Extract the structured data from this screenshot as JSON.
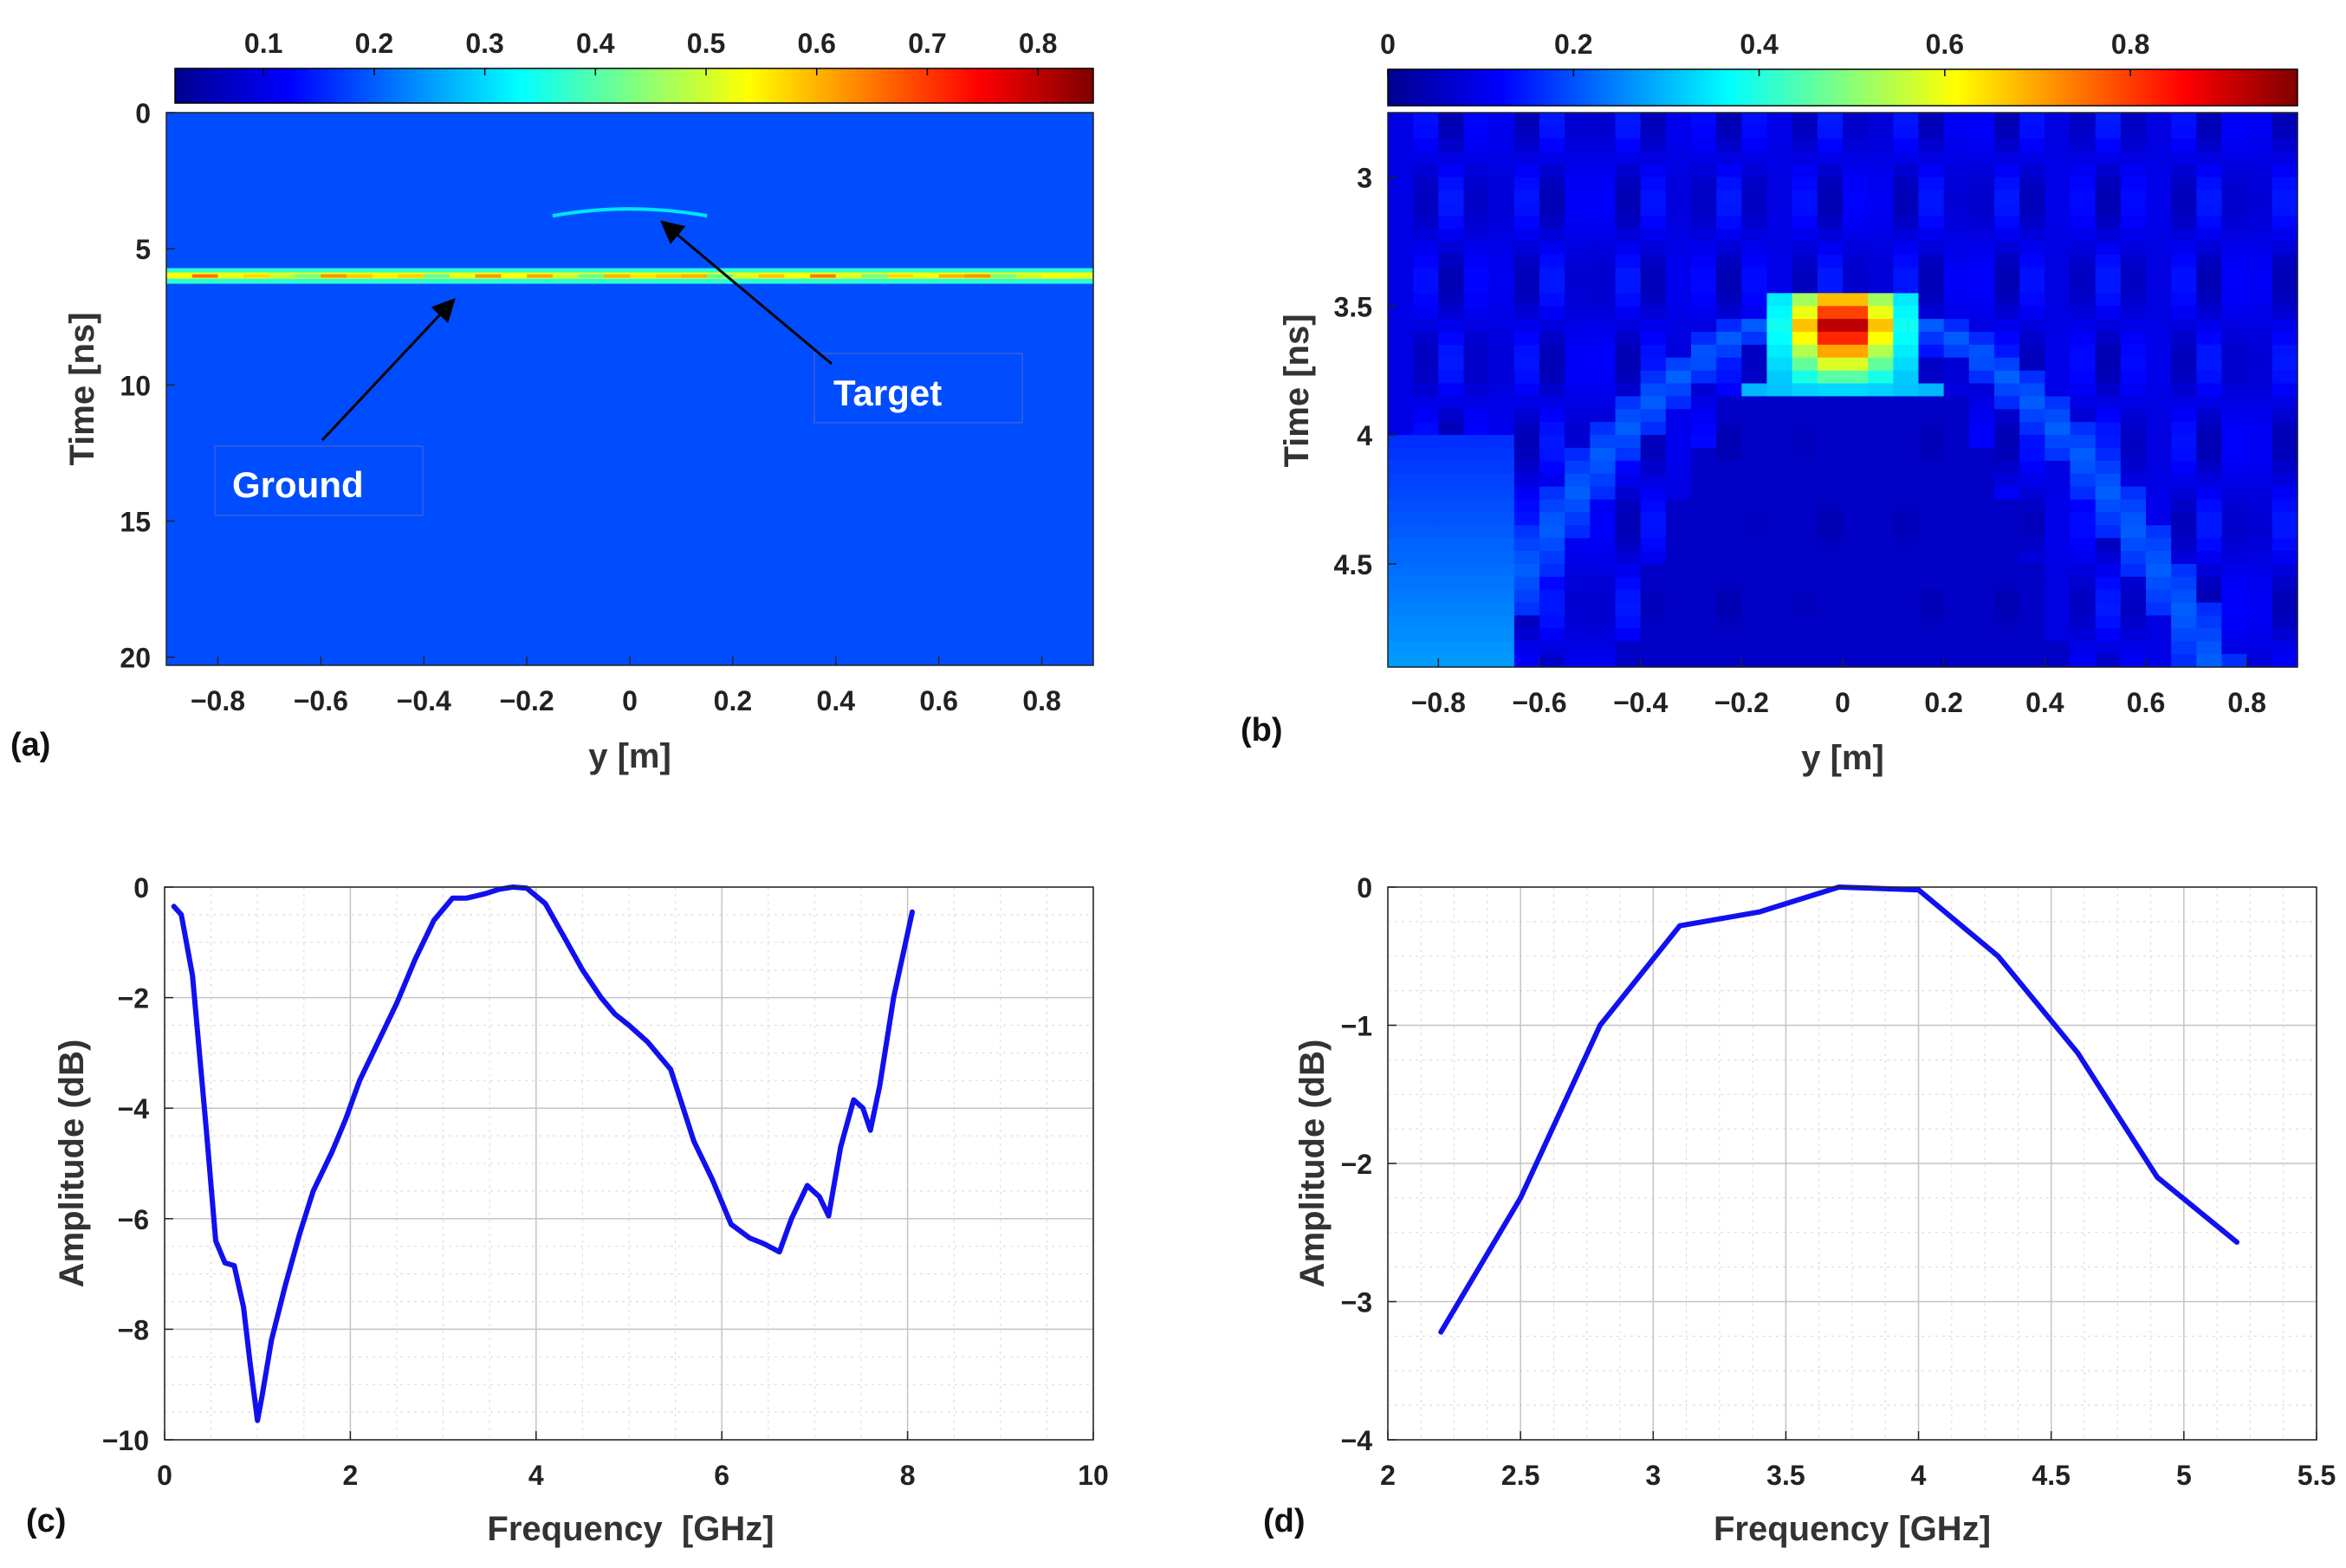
{
  "chart_data": [
    {
      "panel": "(a)",
      "type": "heatmap",
      "xlabel": "y [m]",
      "ylabel": "Time [ns]",
      "xlim": [
        -0.9,
        0.9
      ],
      "ylim": [
        0,
        20.3
      ],
      "xticks": [
        -0.8,
        -0.6,
        -0.4,
        -0.2,
        0,
        0.2,
        0.4,
        0.6,
        0.8
      ],
      "xtick_labels": [
        "−0.8",
        "−0.6",
        "−0.4",
        "−0.2",
        "0",
        "0.2",
        "0.4",
        "0.6",
        "0.8"
      ],
      "yticks": [
        0,
        5,
        10,
        15,
        20
      ],
      "ytick_labels": [
        "0",
        "5",
        "10",
        "15",
        "20"
      ],
      "colorbar": {
        "range": [
          0.02,
          0.85
        ],
        "ticks": [
          0.1,
          0.2,
          0.3,
          0.4,
          0.5,
          0.6,
          0.7,
          0.8
        ],
        "tick_labels": [
          "0.1",
          "0.2",
          "0.3",
          "0.4",
          "0.5",
          "0.6",
          "0.7",
          "0.8"
        ]
      },
      "background_level": 0.2,
      "features": [
        {
          "name": "ground",
          "time_ns": 6.0,
          "y_from": -0.9,
          "y_to": 0.9,
          "peak": 0.8
        },
        {
          "name": "target",
          "time_ns": 3.6,
          "y_center": 0.0,
          "half_width": 0.15,
          "peak": 0.35
        }
      ],
      "annotations": [
        {
          "label": "Target",
          "arrow_tip": [
            0.07,
            3.9
          ],
          "text_anchor": [
            0.38,
            8.7
          ]
        },
        {
          "label": "Ground",
          "arrow_tip": [
            -0.34,
            6.9
          ],
          "text_anchor": [
            -0.61,
            12.0
          ]
        }
      ]
    },
    {
      "panel": "(b)",
      "type": "heatmap",
      "xlabel": "y [m]",
      "ylabel": "Time [ns]",
      "xlim": [
        -0.9,
        0.9
      ],
      "ylim": [
        2.75,
        4.9
      ],
      "xticks": [
        -0.8,
        -0.6,
        -0.4,
        -0.2,
        0,
        0.2,
        0.4,
        0.6,
        0.8
      ],
      "xtick_labels": [
        "−0.8",
        "−0.6",
        "−0.4",
        "−0.2",
        "0",
        "0.2",
        "0.4",
        "0.6",
        "0.8"
      ],
      "yticks": [
        3,
        3.5,
        4,
        4.5
      ],
      "ytick_labels": [
        "3",
        "3.5",
        "4",
        "4.5"
      ],
      "colorbar": {
        "range": [
          0,
          0.98
        ],
        "ticks": [
          0,
          0.2,
          0.4,
          0.6,
          0.8
        ],
        "tick_labels": [
          "0",
          "0.2",
          "0.4",
          "0.6",
          "0.8"
        ]
      },
      "background_level": 0.1,
      "features": [
        {
          "name": "target-peak",
          "y_center": 0.0,
          "time_ns": 3.58,
          "peak": 0.95
        },
        {
          "name": "hyperbola-tail",
          "apex_time_ns": 3.5,
          "apex_y": 0.0,
          "level": 0.22
        },
        {
          "name": "left-edge-clutter",
          "y_from": -0.9,
          "y_to": -0.65,
          "time_from": 4.0,
          "time_to": 4.9,
          "level": 0.28
        }
      ]
    },
    {
      "panel": "(c)",
      "type": "line",
      "xlabel": "Frequency  [GHz]",
      "ylabel": "Amplitude (dB)",
      "xlim": [
        0,
        10
      ],
      "ylim": [
        -10,
        0
      ],
      "xticks": [
        0,
        2,
        4,
        6,
        8,
        10
      ],
      "xtick_labels": [
        "0",
        "2",
        "4",
        "6",
        "8",
        "10"
      ],
      "yticks": [
        -10,
        -8,
        -6,
        -4,
        -2,
        0
      ],
      "ytick_labels": [
        "−10",
        "−8",
        "−6",
        "−4",
        "−2",
        "0"
      ],
      "grid": true,
      "minor_grid": true,
      "series": [
        {
          "name": "spectrum",
          "color": "#1010f0",
          "x": [
            0.1,
            0.18,
            0.3,
            0.45,
            0.55,
            0.65,
            0.75,
            0.85,
            0.92,
            1.0,
            1.05,
            1.15,
            1.3,
            1.45,
            1.6,
            1.8,
            1.95,
            2.1,
            2.3,
            2.5,
            2.7,
            2.9,
            3.1,
            3.25,
            3.45,
            3.6,
            3.75,
            3.9,
            4.1,
            4.3,
            4.5,
            4.7,
            4.85,
            5.0,
            5.2,
            5.45,
            5.7,
            5.9,
            6.1,
            6.3,
            6.45,
            6.62,
            6.75,
            6.92,
            7.05,
            7.15,
            7.28,
            7.42,
            7.52,
            7.6,
            7.7,
            7.85,
            8.05
          ],
          "values": [
            -0.35,
            -0.5,
            -1.6,
            -4.4,
            -6.4,
            -6.8,
            -6.85,
            -7.6,
            -8.6,
            -9.65,
            -9.2,
            -8.2,
            -7.2,
            -6.3,
            -5.5,
            -4.8,
            -4.2,
            -3.5,
            -2.8,
            -2.1,
            -1.3,
            -0.6,
            -0.2,
            -0.2,
            -0.12,
            -0.04,
            0.0,
            -0.02,
            -0.3,
            -0.9,
            -1.5,
            -2.0,
            -2.3,
            -2.5,
            -2.8,
            -3.3,
            -4.6,
            -5.3,
            -6.1,
            -6.35,
            -6.45,
            -6.6,
            -6.0,
            -5.4,
            -5.6,
            -5.95,
            -4.7,
            -3.85,
            -4.0,
            -4.4,
            -3.6,
            -2.0,
            -0.45
          ]
        }
      ]
    },
    {
      "panel": "(d)",
      "type": "line",
      "xlabel": "Frequency [GHz]",
      "ylabel": "Amplitude (dB)",
      "xlim": [
        2,
        5.5
      ],
      "ylim": [
        -4,
        0
      ],
      "xticks": [
        2,
        2.5,
        3,
        3.5,
        4,
        4.5,
        5,
        5.5
      ],
      "xtick_labels": [
        "2",
        "2.5",
        "3",
        "3.5",
        "4",
        "4.5",
        "5",
        "5.5"
      ],
      "yticks": [
        -4,
        -3,
        -2,
        -1,
        0
      ],
      "ytick_labels": [
        "−4",
        "−3",
        "−2",
        "−1",
        "0"
      ],
      "grid": true,
      "minor_grid": true,
      "series": [
        {
          "name": "spectrum",
          "color": "#1010f0",
          "x": [
            2.2,
            2.5,
            2.8,
            3.1,
            3.4,
            3.7,
            4.0,
            4.3,
            4.6,
            4.9,
            5.2
          ],
          "values": [
            -3.22,
            -2.25,
            -1.0,
            -0.28,
            -0.18,
            0.0,
            -0.02,
            -0.5,
            -1.2,
            -2.1,
            -2.57
          ]
        }
      ]
    }
  ]
}
